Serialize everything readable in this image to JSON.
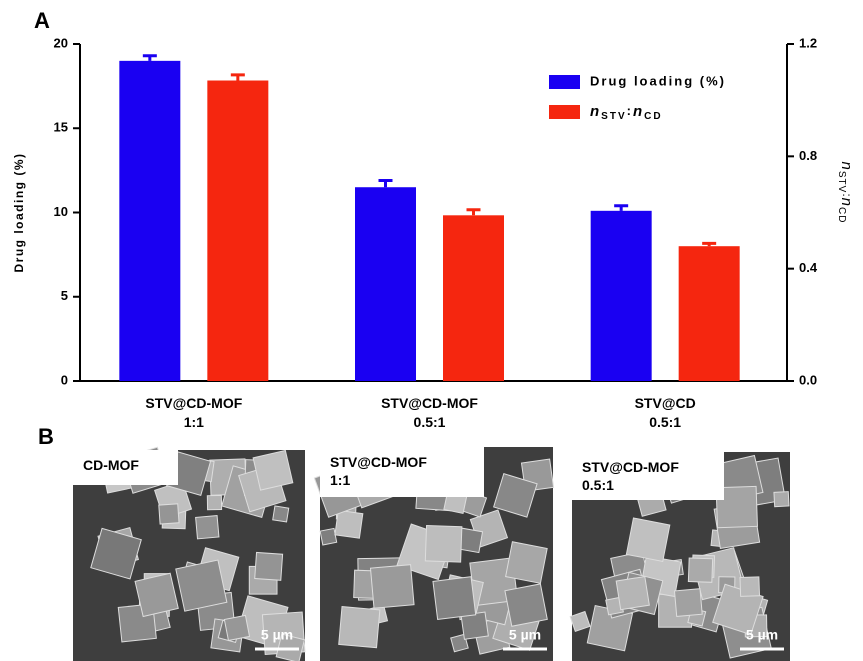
{
  "panel_labels": [
    "A",
    "B"
  ],
  "chart_data": {
    "type": "bar",
    "categories": [
      "STV@CD-MOF\n1:1",
      "STV@CD-MOF\n0.5:1",
      "STV@CD\n0.5:1"
    ],
    "ylabel": "Drug loading (%)",
    "y2label": "nSTV:nCD",
    "ylim": [
      0,
      20
    ],
    "yticks": [
      0,
      5,
      10,
      15,
      20
    ],
    "y2lim": [
      0,
      1.2
    ],
    "y2ticks": [
      {
        "value": 0,
        "label": "0.0"
      },
      0.4,
      0.8,
      1.2
    ],
    "series": [
      {
        "name": "Drug loading (%)",
        "color": "#1a00f2",
        "values": [
          19.0,
          11.5,
          10.1
        ],
        "errors": [
          0.3,
          0.4,
          0.3
        ]
      },
      {
        "name": "nSTV:nCD",
        "color": "#f5260f",
        "axis": "y2",
        "values": [
          1.07,
          0.59,
          0.48
        ],
        "errors": [
          0.02,
          0.02,
          0.01
        ]
      }
    ],
    "legend": "upper right"
  },
  "images": [
    {
      "label": "CD-MOF",
      "scale": "5 µm"
    },
    {
      "label": "STV@CD-MOF\n1:1",
      "scale": "5 µm"
    },
    {
      "label": "STV@CD-MOF\n0.5:1",
      "scale": "5 µm"
    }
  ]
}
